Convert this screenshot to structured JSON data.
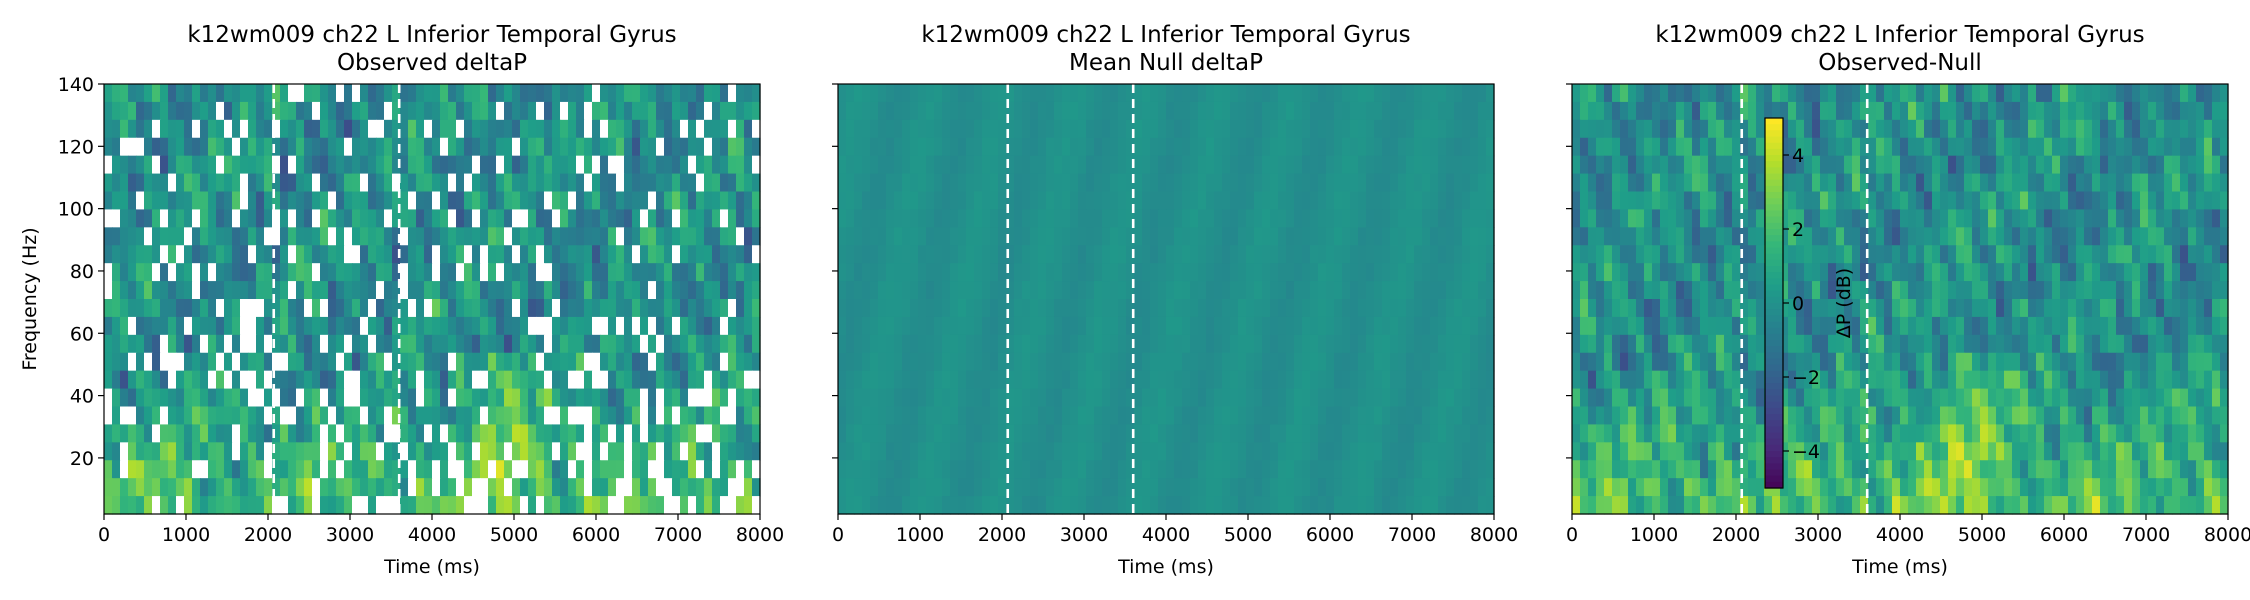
{
  "figure": {
    "panels": [
      {
        "title_line1": "k12wm009 ch22 L Inferior Temporal Gyrus",
        "title_line2": "Observed deltaP",
        "xlabel": "Time (ms)",
        "ylabel": "Frequency (Hz)"
      },
      {
        "title_line1": "k12wm009 ch22 L Inferior Temporal Gyrus",
        "title_line2": "Mean Null deltaP",
        "xlabel": "Time (ms)",
        "ylabel": ""
      },
      {
        "title_line1": "k12wm009 ch22 L Inferior Temporal Gyrus",
        "title_line2": "Observed-Null",
        "xlabel": "Time (ms)",
        "ylabel": ""
      }
    ],
    "colorbar_label": "ΔP (dB)"
  },
  "chart_data": [
    {
      "type": "heatmap",
      "title": "k12wm009 ch22 L Inferior Temporal Gyrus\nObserved deltaP",
      "xlabel": "Time (ms)",
      "ylabel": "Frequency (Hz)",
      "xlim": [
        0,
        8000
      ],
      "ylim": [
        2,
        140
      ],
      "xticks": [
        0,
        1000,
        2000,
        3000,
        4000,
        5000,
        6000,
        7000,
        8000
      ],
      "yticks": [
        20,
        40,
        60,
        80,
        100,
        120,
        140
      ],
      "event_lines_ms": [
        2070,
        3600
      ],
      "masked_cells": "white (non-significant) cells scattered throughout",
      "value_range_db": [
        -5,
        5
      ],
      "colormap": "viridis"
    },
    {
      "type": "heatmap",
      "title": "k12wm009 ch22 L Inferior Temporal Gyrus\nMean Null deltaP",
      "xlabel": "Time (ms)",
      "xlim": [
        0,
        8000
      ],
      "ylim": [
        2,
        140
      ],
      "xticks": [
        0,
        1000,
        2000,
        3000,
        4000,
        5000,
        6000,
        7000,
        8000
      ],
      "event_lines_ms": [
        2070,
        3600
      ],
      "approx_value_db": 0,
      "colormap": "viridis"
    },
    {
      "type": "heatmap",
      "title": "k12wm009 ch22 L Inferior Temporal Gyrus\nObserved-Null",
      "xlabel": "Time (ms)",
      "xlim": [
        0,
        8000
      ],
      "ylim": [
        2,
        140
      ],
      "xticks": [
        0,
        1000,
        2000,
        3000,
        4000,
        5000,
        6000,
        7000,
        8000
      ],
      "event_lines_ms": [
        2070,
        3600
      ],
      "value_range_db": [
        -5,
        5
      ],
      "colormap": "viridis",
      "colorbar": {
        "label": "ΔP (dB)",
        "ticks": [
          -4,
          -2,
          0,
          2,
          4
        ],
        "range": [
          -5,
          5
        ]
      }
    }
  ],
  "colors": {
    "viridis": [
      "#440154",
      "#482878",
      "#3e4989",
      "#31688e",
      "#26828e",
      "#1f9e89",
      "#35b779",
      "#6ece58",
      "#b5de2b",
      "#fde725"
    ],
    "event_line": "#ffffff",
    "mask": "#ffffff"
  }
}
